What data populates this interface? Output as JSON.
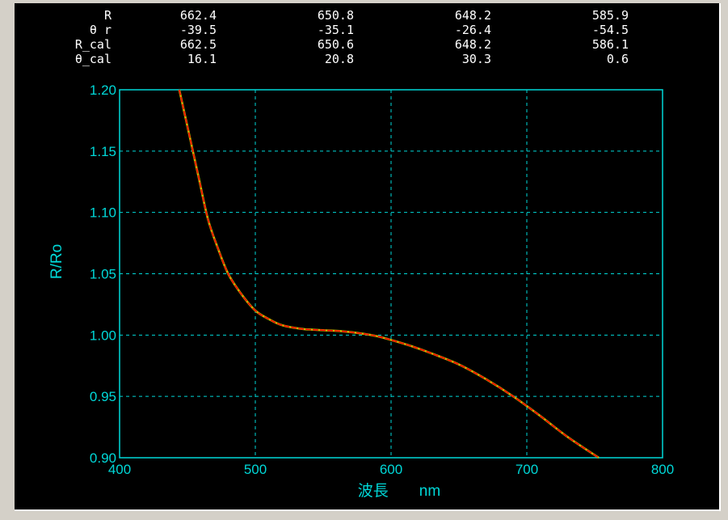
{
  "readout": {
    "rows": [
      {
        "label": "R",
        "values": [
          "662.4",
          "650.8",
          "648.2",
          "585.9"
        ]
      },
      {
        "label": "θ r",
        "values": [
          "-39.5",
          "-35.1",
          "-26.4",
          "-54.5"
        ]
      },
      {
        "label": "R_cal",
        "values": [
          "662.5",
          "650.6",
          "648.2",
          "586.1"
        ]
      },
      {
        "label": "θ_cal",
        "values": [
          "16.1",
          "20.8",
          "30.3",
          "0.6"
        ]
      }
    ]
  },
  "chart_data": {
    "type": "line",
    "xlabel": "波長　　nm",
    "ylabel": "R/Ro",
    "xlim": [
      400,
      800
    ],
    "ylim": [
      0.9,
      1.2
    ],
    "xticks": [
      "400",
      "500",
      "600",
      "700",
      "800"
    ],
    "yticks": [
      "0.90",
      "0.95",
      "1.00",
      "1.05",
      "1.10",
      "1.15",
      "1.20"
    ],
    "grid": true,
    "colors": {
      "axis": "#00d8d8",
      "grid": "#00d8d8",
      "measured": "#c0c000",
      "fit": "#ff0000"
    },
    "series": [
      {
        "id": "measured",
        "x": [
          444,
          450,
          458,
          465,
          472,
          480,
          490,
          500,
          510,
          520,
          535,
          550,
          565,
          580,
          590,
          600,
          615,
          630,
          650,
          670,
          690,
          710,
          730,
          753
        ],
        "y": [
          1.2,
          1.17,
          1.13,
          1.095,
          1.072,
          1.05,
          1.033,
          1.02,
          1.013,
          1.008,
          1.005,
          1.004,
          1.003,
          1.001,
          0.999,
          0.996,
          0.991,
          0.985,
          0.976,
          0.964,
          0.95,
          0.934,
          0.917,
          0.9
        ]
      },
      {
        "id": "fit",
        "x": [
          444,
          450,
          458,
          465,
          472,
          480,
          490,
          500,
          510,
          520,
          535,
          550,
          565,
          580,
          590,
          600,
          615,
          630,
          650,
          670,
          690,
          710,
          730,
          753
        ],
        "y": [
          1.2,
          1.17,
          1.13,
          1.095,
          1.072,
          1.05,
          1.033,
          1.02,
          1.013,
          1.008,
          1.005,
          1.004,
          1.003,
          1.001,
          0.999,
          0.996,
          0.991,
          0.985,
          0.976,
          0.964,
          0.95,
          0.934,
          0.917,
          0.9
        ]
      }
    ]
  }
}
